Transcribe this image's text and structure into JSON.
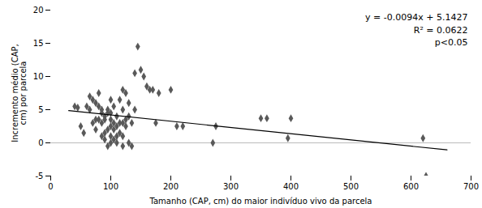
{
  "chart_data": {
    "type": "scatter",
    "xlabel": "Tamanho (CAP, cm) do maior indivíduo vivo da parcela",
    "ylabel": "Incremento médio (CAP,\ncm) por parcela",
    "xlim": [
      0,
      700
    ],
    "ylim": [
      -5,
      20
    ],
    "xticks": [
      0,
      100,
      200,
      300,
      400,
      500,
      600,
      700
    ],
    "yticks": [
      -5,
      0,
      5,
      10,
      15,
      20
    ],
    "grid": false,
    "series": [
      {
        "type": "scatter",
        "marker": "diamond",
        "color": "#595959",
        "x": [
          40,
          45,
          50,
          55,
          60,
          65,
          65,
          70,
          70,
          75,
          75,
          75,
          80,
          80,
          80,
          85,
          85,
          85,
          85,
          90,
          90,
          90,
          90,
          95,
          95,
          95,
          95,
          100,
          100,
          100,
          100,
          100,
          100,
          105,
          105,
          105,
          105,
          110,
          110,
          110,
          110,
          115,
          115,
          115,
          120,
          120,
          120,
          120,
          120,
          125,
          125,
          125,
          130,
          130,
          130,
          135,
          135,
          140,
          140,
          145,
          150,
          155,
          160,
          165,
          170,
          175,
          180,
          200,
          210,
          220,
          270,
          275,
          350,
          360,
          395,
          400,
          620,
          625
        ],
        "values": [
          5.5,
          5.3,
          2.5,
          1.5,
          5.5,
          5.0,
          7.0,
          3.0,
          6.5,
          2.0,
          3.5,
          6.0,
          3.5,
          5.5,
          7.5,
          1.0,
          3.0,
          4.5,
          5.0,
          0.5,
          1.5,
          3.5,
          4.0,
          -0.5,
          2.0,
          4.5,
          5.0,
          0.0,
          1.0,
          2.5,
          3.5,
          4.5,
          6.5,
          0.5,
          2.0,
          3.0,
          5.5,
          0.0,
          1.0,
          2.5,
          4.0,
          1.5,
          3.0,
          6.5,
          -0.5,
          1.0,
          3.0,
          5.0,
          8.0,
          2.5,
          3.5,
          7.5,
          0.0,
          4.0,
          6.0,
          -0.5,
          3.0,
          5.0,
          10.5,
          14.5,
          11.0,
          10.0,
          8.5,
          8.0,
          8.0,
          3.0,
          7.5,
          8.0,
          2.5,
          2.5,
          0.0,
          2.5,
          3.7,
          3.7,
          0.7,
          3.7,
          0.7,
          -5.0
        ]
      },
      {
        "type": "line",
        "line_style": "solid",
        "color": "#000000",
        "x": [
          30,
          660
        ],
        "values": [
          4.8607,
          -1.0613
        ]
      }
    ],
    "hlines": [
      {
        "value": 0,
        "color": "#aaaaaa"
      }
    ],
    "annotations": [
      "y = -0.0094x + 5.1427",
      "R² = 0.0622",
      "p<0.05"
    ]
  }
}
